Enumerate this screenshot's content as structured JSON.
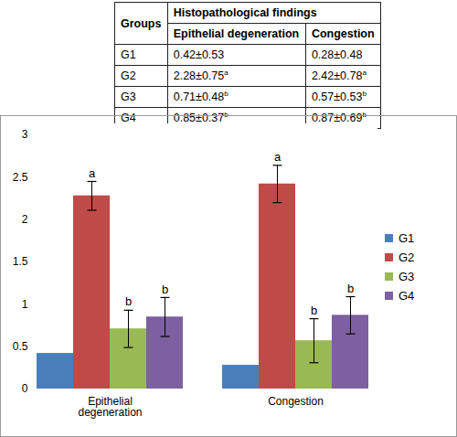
{
  "table": {
    "header": [
      "Groups",
      "Histopathological findings"
    ],
    "subheader": [
      "Epithelial degeneration",
      "Congestion"
    ],
    "rows": [
      {
        "group": "G1",
        "cells": [
          {
            "text": "0.42±0.53"
          },
          {
            "text": "0.28±0.48"
          }
        ]
      },
      {
        "group": "G2",
        "cells": [
          {
            "text": "2.28±0.75",
            "sup": "a"
          },
          {
            "text": "2.42±0.78",
            "sup": "a"
          }
        ]
      },
      {
        "group": "G3",
        "cells": [
          {
            "text": "0.71±0.48",
            "sup": "b"
          },
          {
            "text": "0.57±0.53",
            "sup": "b"
          }
        ]
      },
      {
        "group": "G4",
        "cells": [
          {
            "text": "0.85±0.37",
            "sup": "b"
          },
          {
            "text": "0.87±0.69",
            "sup": "b"
          }
        ]
      }
    ]
  },
  "chart_data": {
    "type": "bar",
    "categories": [
      "Epithelial degeneration",
      "Congestion"
    ],
    "series": [
      {
        "name": "G1",
        "color": "#4a7ebb",
        "values": [
          0.42,
          0.28
        ]
      },
      {
        "name": "G2",
        "color": "#be4b48",
        "values": [
          2.28,
          2.42
        ],
        "error": [
          0.17,
          0.22
        ],
        "letters": [
          "a",
          "a"
        ]
      },
      {
        "name": "G3",
        "color": "#98b954",
        "values": [
          0.71,
          0.57
        ],
        "error": [
          0.22,
          0.26
        ],
        "letters": [
          "b",
          "b"
        ]
      },
      {
        "name": "G4",
        "color": "#7d60a0",
        "values": [
          0.85,
          0.87
        ],
        "error": [
          0.23,
          0.22
        ],
        "letters": [
          "b",
          "b"
        ]
      }
    ],
    "ylim": [
      0,
      3
    ],
    "yticks": [
      0,
      0.5,
      1,
      1.5,
      2,
      2.5,
      3
    ],
    "grid": false,
    "legend": "right"
  }
}
